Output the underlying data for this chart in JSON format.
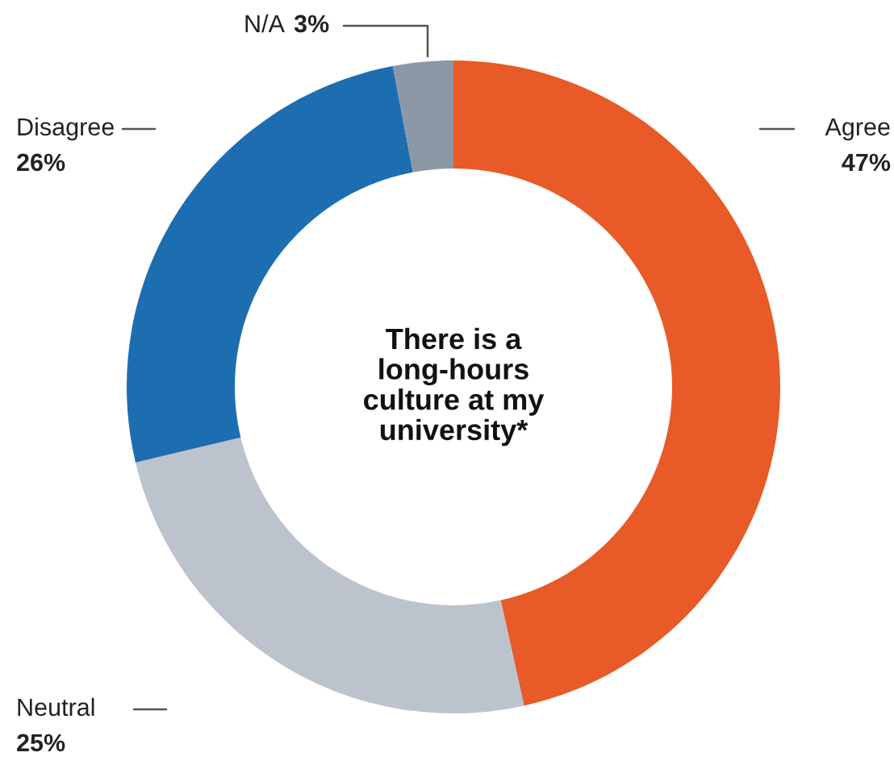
{
  "chart_data": {
    "type": "donut",
    "title": "There is a\nlong-hours\nculture at my\nuniversity*",
    "categories": [
      "Agree",
      "Neutral",
      "Disagree",
      "N/A"
    ],
    "values": [
      47,
      25,
      26,
      3
    ],
    "value_labels": [
      "47%",
      "25%",
      "26%",
      "3%"
    ],
    "colors": [
      "#e85a27",
      "#bcc3cd",
      "#1d6db1",
      "#8c98a5"
    ]
  }
}
